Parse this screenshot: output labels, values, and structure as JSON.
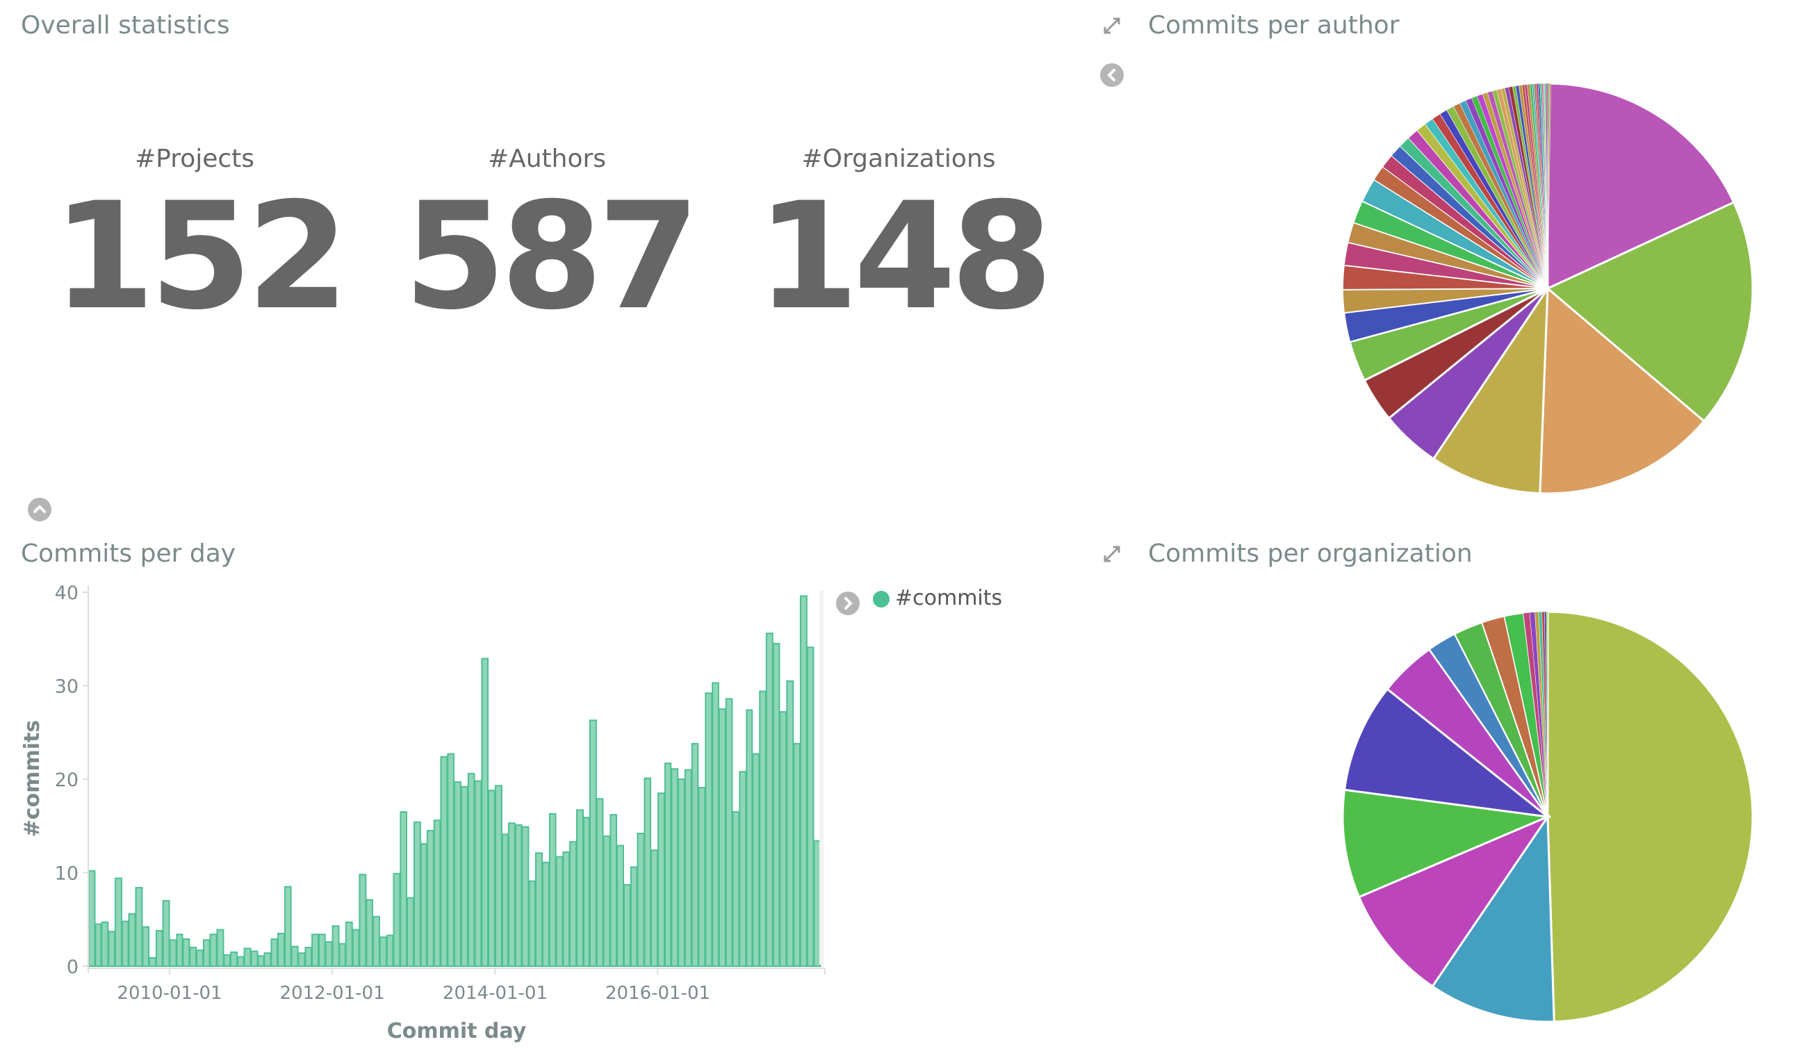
{
  "overall": {
    "title": "Overall statistics",
    "stats": [
      {
        "label": "#Projects",
        "value": "152"
      },
      {
        "label": "#Authors",
        "value": "587"
      },
      {
        "label": "#Organizations",
        "value": "148"
      }
    ]
  },
  "icons": {
    "expand": "expand-arrows-icon",
    "collapse_left": "chevron-left-circle-icon",
    "collapse_up": "chevron-up-circle-icon",
    "legend_toggle": "chevron-right-circle-icon"
  },
  "colors": {
    "text": "#666666",
    "title": "#7b8a8b",
    "bar_fill": "#8fd6b6",
    "bar_stroke": "#4cbf95",
    "legend": "#4cbf95"
  },
  "chart_data": [
    {
      "type": "pie",
      "title": "Commits per author",
      "unit": "percent of commits (estimated)",
      "values": [
        18.1,
        18.1,
        14.4,
        8.8,
        4.7,
        3.5,
        3.2,
        2.3,
        1.8,
        1.9,
        1.8,
        1.6,
        1.8,
        1.9,
        1.2,
        1.1,
        1.0,
        0.9,
        0.9,
        0.8,
        0.7,
        0.7,
        0.6,
        0.6,
        0.55,
        0.5,
        0.5,
        0.45,
        0.45,
        0.4,
        0.4,
        0.35,
        0.35,
        0.3,
        0.3,
        0.3,
        0.25,
        0.25,
        0.25,
        0.2,
        0.2,
        0.2,
        0.2,
        0.15,
        0.15,
        0.15,
        0.15,
        0.15,
        0.1,
        0.1,
        0.1,
        0.1,
        0.1,
        0.1,
        0.1
      ],
      "colors": [
        "#b956b8",
        "#8bbd4a",
        "#d99e60",
        "#bfad4b",
        "#8a47b9",
        "#993536",
        "#75bc4a",
        "#4152bb",
        "#bd9445",
        "#bb5045",
        "#bc4279",
        "#bd8a45",
        "#45bd5a",
        "#45afbd",
        "#bd6745",
        "#bd3f6b",
        "#4063bd",
        "#45bd8a",
        "#bd45b0",
        "#b3bd45",
        "#45bdbd",
        "#bd4545",
        "#4545bd",
        "#8abd45",
        "#bd7845",
        "#45a0bd",
        "#9045bd",
        "#45bd45",
        "#bd45d0",
        "#bda045"
      ]
    },
    {
      "type": "pie",
      "title": "Commits per organization",
      "unit": "percent of commits (estimated)",
      "values": [
        49.5,
        10.0,
        9.1,
        8.5,
        8.6,
        4.5,
        2.3,
        2.3,
        1.8,
        1.5,
        0.5,
        0.4,
        0.3,
        0.25,
        0.2,
        0.15,
        0.1
      ],
      "colors": [
        "#acbf4a",
        "#449fc0",
        "#bb45b9",
        "#50bf4a",
        "#5245bb",
        "#b545bf",
        "#4584bf",
        "#55b84a",
        "#bf6e45",
        "#45bf4f",
        "#bf4579",
        "#8a45bf",
        "#bfa045",
        "#45bfa0",
        "#bf4545",
        "#4555bf",
        "#9fbf45"
      ]
    },
    {
      "type": "bar",
      "title": "Commits per day",
      "xlabel": "Commit day",
      "ylabel": "#commits",
      "legend": {
        "entries": [
          "#commits"
        ],
        "placement": "top-right"
      },
      "ylim": [
        0,
        40
      ],
      "yticks": [
        0,
        10,
        20,
        30,
        40
      ],
      "xticks": [
        "2010-01-01",
        "2012-01-01",
        "2014-01-01",
        "2016-01-01"
      ],
      "xlim": [
        "2009-01-01",
        "2018-01-20"
      ],
      "x_start": "2009-01",
      "interval": "month",
      "grid": false,
      "values": [
        10.2,
        4.5,
        4.7,
        3.7,
        9.4,
        4.8,
        5.6,
        8.4,
        4.2,
        0.9,
        3.8,
        7.0,
        2.8,
        3.4,
        2.9,
        2.0,
        1.7,
        2.8,
        3.4,
        3.9,
        1.2,
        1.5,
        1.0,
        1.9,
        1.6,
        1.1,
        1.4,
        2.9,
        3.5,
        8.5,
        2.1,
        1.4,
        2.0,
        3.4,
        3.4,
        2.6,
        4.3,
        2.4,
        4.7,
        3.9,
        9.8,
        7.1,
        5.3,
        3.1,
        3.3,
        9.9,
        16.5,
        7.3,
        15.4,
        13.1,
        14.5,
        15.6,
        22.4,
        22.7,
        19.7,
        19.2,
        20.6,
        19.8,
        32.9,
        18.8,
        19.3,
        14.1,
        15.3,
        15.1,
        14.9,
        9.1,
        12.1,
        11.1,
        16.3,
        11.7,
        12.2,
        13.3,
        16.7,
        15.9,
        26.3,
        17.9,
        13.9,
        16.2,
        12.9,
        8.7,
        10.6,
        14.2,
        20.1,
        12.4,
        18.5,
        21.7,
        21.1,
        20.0,
        21.0,
        23.8,
        19.1,
        29.2,
        30.3,
        27.5,
        28.6,
        16.5,
        20.8,
        27.4,
        22.7,
        29.4,
        35.6,
        34.5,
        27.2,
        30.5,
        23.8,
        39.6,
        34.1,
        13.4
      ]
    }
  ]
}
